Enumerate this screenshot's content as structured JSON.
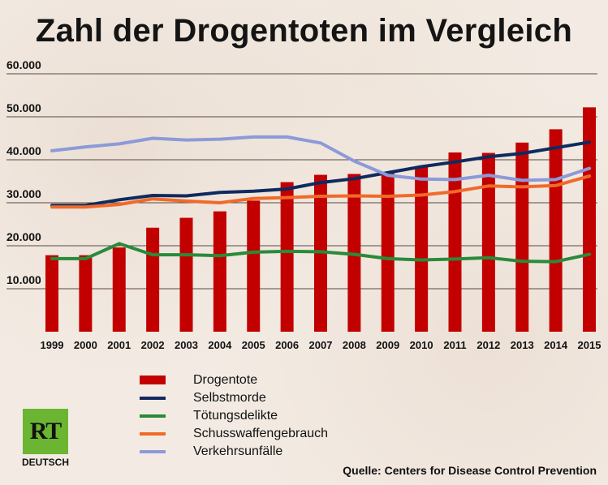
{
  "title": "Zahl der Drogentoten im Vergleich",
  "source": "Quelle: Centers for Disease Control Prevention",
  "logo": {
    "main": "RT",
    "sub": "DEUTSCH"
  },
  "colors": {
    "Drogentote": "#c30000",
    "Selbstmorde": "#0f2a5e",
    "Tötungsdelikte": "#2a8a3a",
    "Schusswaffengebrauch": "#f06a2a",
    "Verkehrsunfälle": "#8c9ad8"
  },
  "chart_data": {
    "type": "bar+line",
    "title": "Zahl der Drogentoten im Vergleich",
    "xlabel": "",
    "ylabel": "",
    "ylim": [
      0,
      60000
    ],
    "yticks": [
      10000,
      20000,
      30000,
      40000,
      50000,
      60000
    ],
    "ytick_labels": [
      "10.000",
      "20.000",
      "30.000",
      "40.000",
      "50.000",
      "60.000"
    ],
    "categories": [
      "1999",
      "2000",
      "2001",
      "2002",
      "2003",
      "2004",
      "2005",
      "2006",
      "2007",
      "2008",
      "2009",
      "2010",
      "2011",
      "2012",
      "2013",
      "2014",
      "2015"
    ],
    "grid": "horizontal",
    "legend_position": "bottom-left",
    "series": [
      {
        "name": "Drogentote",
        "kind": "bar",
        "values": [
          17800,
          17800,
          19600,
          24200,
          26500,
          28000,
          30500,
          34800,
          36500,
          36700,
          37000,
          38500,
          41700,
          41600,
          44000,
          47100,
          52200
        ]
      },
      {
        "name": "Selbstmorde",
        "kind": "line",
        "values": [
          29400,
          29400,
          30700,
          31700,
          31600,
          32400,
          32700,
          33200,
          34700,
          35600,
          37000,
          38400,
          39500,
          40700,
          41500,
          42800,
          44100
        ]
      },
      {
        "name": "Tötungsdelikte",
        "kind": "line",
        "values": [
          17000,
          17000,
          20500,
          17900,
          17900,
          17700,
          18500,
          18700,
          18600,
          18000,
          17000,
          16700,
          16900,
          17200,
          16400,
          16300,
          18000
        ]
      },
      {
        "name": "Schusswaffengebrauch",
        "kind": "line",
        "values": [
          29000,
          29000,
          29600,
          30900,
          30400,
          30000,
          31000,
          31200,
          31500,
          31600,
          31500,
          31800,
          32600,
          33900,
          33700,
          34000,
          36200
        ]
      },
      {
        "name": "Verkehrsunfälle",
        "kind": "line",
        "values": [
          42100,
          43000,
          43700,
          45000,
          44600,
          44800,
          45300,
          45300,
          43900,
          39700,
          36400,
          35500,
          35400,
          36400,
          35200,
          35400,
          38000
        ]
      }
    ]
  }
}
